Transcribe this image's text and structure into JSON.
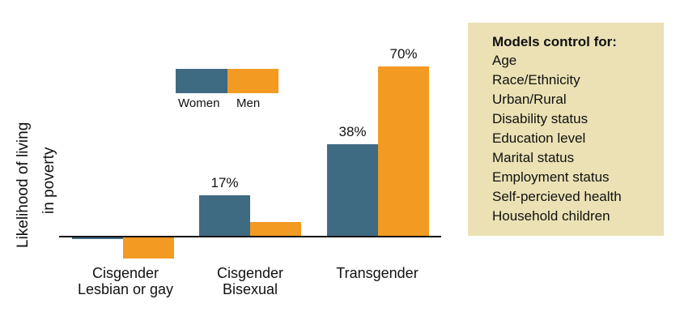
{
  "chart_data": {
    "type": "bar",
    "categories": [
      "Cisgender\nLesbian or gay",
      "Cisgender\nBisexual",
      "Transgender"
    ],
    "category_lines": [
      [
        "Cisgender",
        "Lesbian or gay"
      ],
      [
        "Cisgender",
        "Bisexual"
      ],
      [
        "Transgender"
      ]
    ],
    "series": [
      {
        "name": "Women",
        "values": [
          -1,
          17,
          38
        ],
        "labels": [
          "",
          "17%",
          "38%"
        ],
        "color": "#3f6b82"
      },
      {
        "name": "Men",
        "values": [
          -9,
          6,
          70
        ],
        "labels": [
          "",
          "",
          "70%"
        ],
        "color": "#f39a22"
      }
    ],
    "ylabel_lines": [
      "Likelihood of living",
      "in poverty"
    ],
    "xlabel": "",
    "title": "",
    "ylim": [
      -10,
      75
    ],
    "grid": false,
    "legend": "top-center"
  },
  "legend": {
    "women_label": "Women",
    "men_label": "Men"
  },
  "controls_panel": {
    "title": "Models control for:",
    "items": [
      "Age",
      "Race/Ethnicity",
      "Urban/Rural",
      "Disability status",
      "Education level",
      "Marital status",
      "Employment status",
      "Self-percieved health",
      "Household children"
    ],
    "background": "#ebe1b4"
  }
}
